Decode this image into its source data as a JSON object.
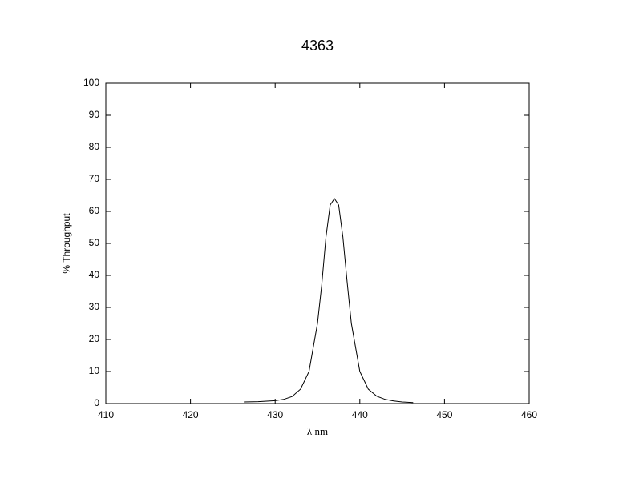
{
  "chart_data": {
    "type": "line",
    "title": "4363",
    "xlabel": "λ nm",
    "ylabel": "% Throughput",
    "xlim": [
      410,
      460
    ],
    "xticks": [
      410,
      420,
      430,
      440,
      450,
      460
    ],
    "ylim": [
      0,
      100
    ],
    "yticks": [
      0,
      10,
      20,
      30,
      40,
      50,
      60,
      70,
      80,
      90,
      100
    ],
    "series": [
      {
        "color": "#000000",
        "x": [
          426.3,
          428,
          430,
          431,
          432,
          433,
          434,
          435,
          435.5,
          436,
          436.5,
          437,
          437.5,
          438,
          438.5,
          439,
          440,
          441,
          442,
          443,
          444,
          445,
          446.3
        ],
        "values": [
          0.5,
          0.6,
          0.9,
          1.3,
          2.2,
          4.5,
          10,
          25,
          37,
          52,
          62,
          64,
          62,
          52,
          38,
          25,
          10,
          4.5,
          2.3,
          1.3,
          0.8,
          0.5,
          0.3
        ]
      }
    ]
  }
}
